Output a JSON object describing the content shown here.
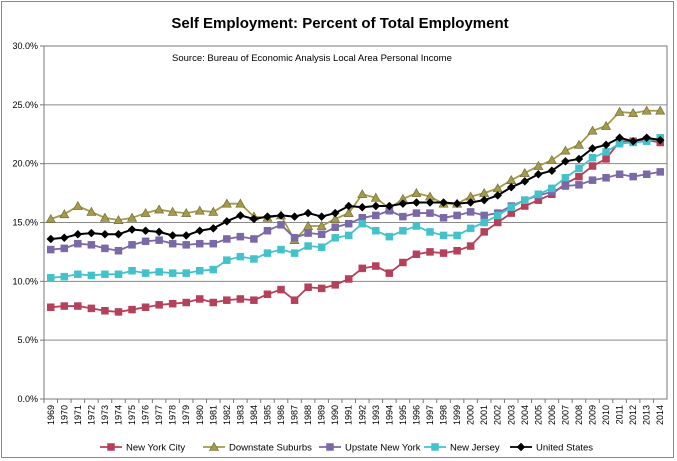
{
  "chart_data": {
    "type": "line",
    "title": "Self Employment:  Percent of Total Employment",
    "annotation": "Source:  Bureau of Economic Analysis Local Area Personal Income",
    "ylim": [
      0,
      30
    ],
    "y_ticks": [
      "0.0%",
      "5.0%",
      "10.0%",
      "15.0%",
      "20.0%",
      "25.0%",
      "30.0%"
    ],
    "y_tick_values": [
      0,
      5,
      10,
      15,
      20,
      25,
      30
    ],
    "grid": "horizontal",
    "legend_position": "bottom",
    "x": [
      "1969",
      "1970",
      "1971",
      "1972",
      "1973",
      "1974",
      "1975",
      "1976",
      "1977",
      "1978",
      "1979",
      "1980",
      "1981",
      "1982",
      "1983",
      "1984",
      "1985",
      "1986",
      "1987",
      "1988",
      "1989",
      "1990",
      "1991",
      "1992",
      "1993",
      "1994",
      "1995",
      "1996",
      "1997",
      "1998",
      "1999",
      "2000",
      "2001",
      "2002",
      "2003",
      "2004",
      "2005",
      "2006",
      "2007",
      "2008",
      "2009",
      "2010",
      "2011",
      "2012",
      "2013",
      "2014"
    ],
    "series": [
      {
        "name": "New York City",
        "color": "#b5405a",
        "marker": "square",
        "values": [
          7.8,
          7.9,
          7.9,
          7.7,
          7.5,
          7.4,
          7.6,
          7.8,
          8.0,
          8.1,
          8.2,
          8.5,
          8.2,
          8.4,
          8.5,
          8.4,
          8.9,
          9.3,
          8.4,
          9.5,
          9.4,
          9.7,
          10.2,
          11.1,
          11.3,
          10.7,
          11.6,
          12.3,
          12.5,
          12.4,
          12.6,
          13.0,
          14.2,
          15.0,
          15.8,
          16.4,
          16.9,
          17.4,
          18.3,
          18.9,
          19.8,
          20.4,
          21.9,
          21.9,
          22.0,
          21.8
        ]
      },
      {
        "name": "Downstate Suburbs",
        "color": "#a39a4c",
        "marker": "triangle",
        "values": [
          15.3,
          15.7,
          16.4,
          15.9,
          15.4,
          15.2,
          15.4,
          15.8,
          16.1,
          15.9,
          15.8,
          16.0,
          15.9,
          16.6,
          16.6,
          15.5,
          15.4,
          15.6,
          13.5,
          14.7,
          14.7,
          15.3,
          15.8,
          17.4,
          17.1,
          16.2,
          17.0,
          17.5,
          17.2,
          16.6,
          16.6,
          17.2,
          17.5,
          17.9,
          18.6,
          19.2,
          19.8,
          20.3,
          21.1,
          21.6,
          22.8,
          23.2,
          24.4,
          24.3,
          24.5,
          24.5
        ]
      },
      {
        "name": "Upstate New York",
        "color": "#7b68a6",
        "marker": "square",
        "values": [
          12.7,
          12.8,
          13.2,
          13.1,
          12.8,
          12.6,
          13.1,
          13.4,
          13.5,
          13.2,
          13.1,
          13.2,
          13.2,
          13.6,
          13.8,
          13.6,
          14.3,
          14.8,
          13.7,
          14.1,
          14.0,
          14.6,
          14.9,
          15.4,
          15.6,
          16.0,
          15.5,
          15.8,
          15.8,
          15.4,
          15.6,
          15.9,
          15.6,
          15.8,
          16.4,
          16.9,
          17.3,
          17.6,
          18.1,
          18.2,
          18.6,
          18.8,
          19.1,
          18.9,
          19.1,
          19.3
        ]
      },
      {
        "name": "New Jersey",
        "color": "#44c2cc",
        "marker": "square",
        "values": [
          10.3,
          10.4,
          10.6,
          10.5,
          10.6,
          10.6,
          10.9,
          10.7,
          10.8,
          10.7,
          10.7,
          10.9,
          11.0,
          11.8,
          12.1,
          11.9,
          12.4,
          12.7,
          12.4,
          13.0,
          12.9,
          13.7,
          13.9,
          14.9,
          14.3,
          13.8,
          14.3,
          14.7,
          14.2,
          13.9,
          13.9,
          14.5,
          15.0,
          15.6,
          16.3,
          16.9,
          17.4,
          17.9,
          18.8,
          19.6,
          20.5,
          21.0,
          21.7,
          21.8,
          21.9,
          22.2
        ]
      },
      {
        "name": "United States",
        "color": "#000000",
        "marker": "diamond",
        "values": [
          13.6,
          13.7,
          14.0,
          14.1,
          14.0,
          14.0,
          14.4,
          14.3,
          14.2,
          13.9,
          13.9,
          14.3,
          14.5,
          15.1,
          15.6,
          15.3,
          15.5,
          15.6,
          15.5,
          15.8,
          15.5,
          15.8,
          16.4,
          16.3,
          16.4,
          16.4,
          16.6,
          16.7,
          16.7,
          16.7,
          16.6,
          16.7,
          16.9,
          17.3,
          18.0,
          18.5,
          19.1,
          19.4,
          20.2,
          20.4,
          21.3,
          21.6,
          22.2,
          21.9,
          22.2,
          22.0
        ]
      }
    ]
  }
}
